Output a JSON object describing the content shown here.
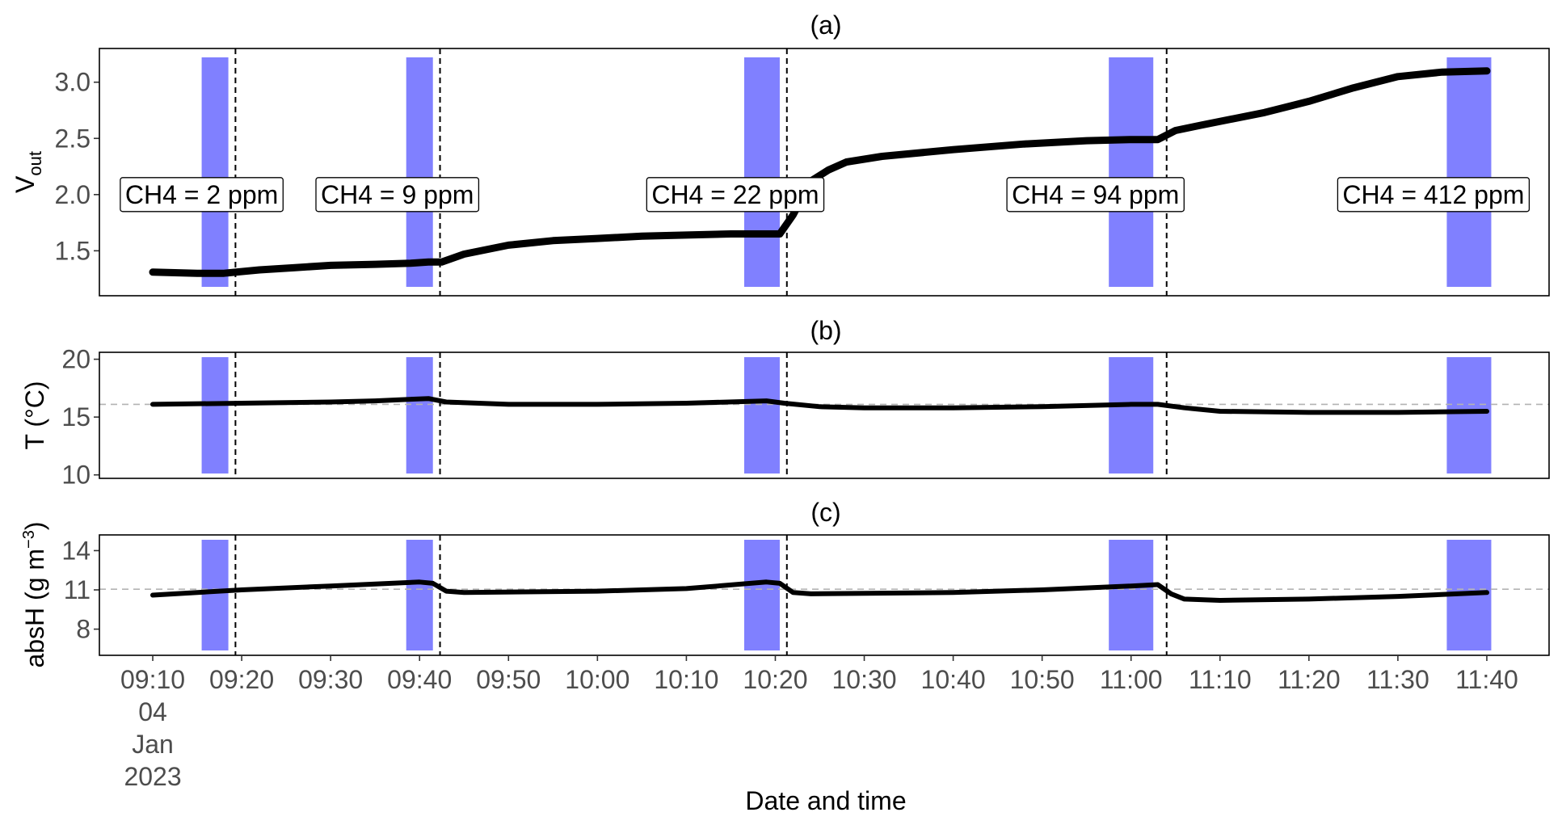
{
  "chart_data": {
    "type": "line",
    "xlabel": "Date and time",
    "x_ticks": [
      {
        "t": 550,
        "label": "09:10",
        "extra": [
          "04",
          "Jan",
          "2023"
        ]
      },
      {
        "t": 560,
        "label": "09:20"
      },
      {
        "t": 570,
        "label": "09:30"
      },
      {
        "t": 580,
        "label": "09:40"
      },
      {
        "t": 590,
        "label": "09:50"
      },
      {
        "t": 600,
        "label": "10:00"
      },
      {
        "t": 610,
        "label": "10:10"
      },
      {
        "t": 620,
        "label": "10:20"
      },
      {
        "t": 630,
        "label": "10:30"
      },
      {
        "t": 640,
        "label": "10:40"
      },
      {
        "t": 650,
        "label": "10:50"
      },
      {
        "t": 660,
        "label": "11:00"
      },
      {
        "t": 670,
        "label": "11:10"
      },
      {
        "t": 680,
        "label": "11:20"
      },
      {
        "t": 690,
        "label": "11:30"
      },
      {
        "t": 700,
        "label": "11:40"
      }
    ],
    "x_unit": "minutes since midnight",
    "xlim": [
      544,
      707
    ],
    "shaded_intervals": [
      [
        555.5,
        558.5
      ],
      [
        578.5,
        581.5
      ],
      [
        616.5,
        620.5
      ],
      [
        657.5,
        662.5
      ],
      [
        695.5,
        700.5
      ]
    ],
    "event_lines": [
      559.3,
      582.3,
      621.3,
      664.0
    ],
    "panels": [
      {
        "title": "(a)",
        "ylabel": "V",
        "ylabel_sub": "out",
        "ylim": [
          1.1,
          3.3
        ],
        "y_ticks": [
          1.5,
          2.0,
          2.5,
          3.0
        ],
        "y_tick_labels": [
          "1.5",
          "2.0",
          "2.5",
          "3.0"
        ],
        "series": {
          "name": "Vout",
          "x": [
            550,
            555,
            558,
            562,
            566,
            570,
            575,
            579,
            581,
            582.5,
            585,
            590,
            595,
            600,
            605,
            610,
            615,
            619,
            620.5,
            622,
            624,
            626,
            628,
            632,
            640,
            648,
            655,
            660,
            663,
            665,
            668,
            675,
            680,
            685,
            690,
            695,
            700
          ],
          "y": [
            1.31,
            1.3,
            1.3,
            1.33,
            1.35,
            1.37,
            1.38,
            1.39,
            1.4,
            1.4,
            1.47,
            1.55,
            1.59,
            1.61,
            1.63,
            1.64,
            1.65,
            1.65,
            1.65,
            1.82,
            2.12,
            2.22,
            2.29,
            2.34,
            2.4,
            2.45,
            2.48,
            2.49,
            2.49,
            2.57,
            2.62,
            2.73,
            2.83,
            2.95,
            3.05,
            3.09,
            3.1
          ]
        },
        "annotations": [
          {
            "x": 555.5,
            "y": 2.0,
            "text": "CH4 = 2 ppm"
          },
          {
            "x": 577.5,
            "y": 2.0,
            "text": "CH4 = 9 ppm"
          },
          {
            "x": 615.5,
            "y": 2.0,
            "text": "CH4 = 22 ppm"
          },
          {
            "x": 656.0,
            "y": 2.0,
            "text": "CH4 = 94 ppm"
          },
          {
            "x": 694.0,
            "y": 2.0,
            "text": "CH4 = 412 ppm"
          }
        ]
      },
      {
        "title": "(b)",
        "ylabel": "T (°C)",
        "ylim": [
          9.7,
          20.6
        ],
        "y_ticks": [
          10,
          15,
          20
        ],
        "y_tick_labels": [
          "10",
          "15",
          "20"
        ],
        "ref_line": 16.1,
        "series": {
          "name": "T",
          "x": [
            550,
            560,
            570,
            575,
            581,
            583,
            590,
            600,
            610,
            619,
            621,
            625,
            630,
            640,
            650,
            660,
            663,
            666,
            670,
            680,
            690,
            700
          ],
          "y": [
            16.1,
            16.2,
            16.3,
            16.4,
            16.6,
            16.3,
            16.1,
            16.1,
            16.2,
            16.4,
            16.2,
            15.9,
            15.8,
            15.8,
            15.9,
            16.1,
            16.1,
            15.8,
            15.5,
            15.4,
            15.4,
            15.5
          ]
        }
      },
      {
        "title": "(c)",
        "ylabel": "absH (g m",
        "ylabel_sup": "−3",
        "ylabel_close": ")",
        "ylim": [
          6.0,
          15.2
        ],
        "y_ticks": [
          8,
          11,
          14
        ],
        "y_tick_labels": [
          "8",
          "11",
          "14"
        ],
        "ref_line": 11.05,
        "series": {
          "name": "absH",
          "x": [
            550,
            560,
            570,
            580,
            581.5,
            583,
            585,
            600,
            610,
            619,
            620.5,
            622,
            624,
            640,
            650,
            660,
            663,
            664.5,
            666,
            670,
            680,
            690,
            700
          ],
          "y": [
            10.6,
            11.0,
            11.3,
            11.6,
            11.5,
            10.9,
            10.8,
            10.9,
            11.1,
            11.6,
            11.5,
            10.8,
            10.7,
            10.8,
            11.0,
            11.3,
            11.4,
            10.7,
            10.3,
            10.2,
            10.3,
            10.5,
            10.8
          ]
        }
      }
    ]
  },
  "colors": {
    "shade": "#8080ff",
    "line": "#000000",
    "ref": "#b3b3b3"
  }
}
